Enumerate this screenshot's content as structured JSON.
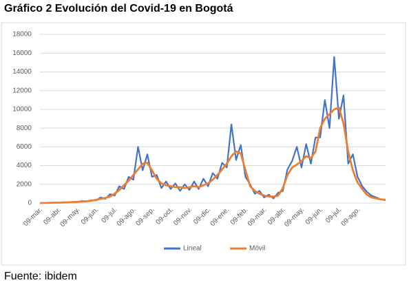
{
  "title": "Gráfico 2 Evolución del Covid-19 en Bogotá",
  "source": "Fuente: ibidem",
  "chart_data": {
    "type": "line",
    "categories": [
      "09-mar.",
      null,
      null,
      null,
      "09-abr.",
      null,
      null,
      null,
      "09-may.",
      null,
      null,
      null,
      "09-jun.",
      null,
      null,
      null,
      "09-jul.",
      null,
      null,
      null,
      "09-ago.",
      null,
      null,
      null,
      "09-sep.",
      null,
      null,
      null,
      "09-oct.",
      null,
      null,
      null,
      "09-nov.",
      null,
      null,
      null,
      "09-dic.",
      null,
      null,
      null,
      "09-ene.",
      null,
      null,
      null,
      "09-feb.",
      null,
      null,
      null,
      "09-mar.",
      null,
      null,
      null,
      "09-abr.",
      null,
      null,
      null,
      "09-may.",
      null,
      null,
      null,
      "09-jun.",
      null,
      null,
      null,
      "09-jul.",
      null,
      null,
      null,
      "09-ago.",
      null,
      null,
      null,
      null,
      null,
      null
    ],
    "series": [
      {
        "name": "Lineal",
        "color": "#4472c4",
        "values": [
          0,
          15,
          30,
          50,
          40,
          90,
          60,
          130,
          100,
          220,
          180,
          300,
          280,
          600,
          450,
          950,
          800,
          1800,
          1500,
          2800,
          2500,
          6000,
          3500,
          5200,
          2800,
          3000,
          1600,
          2300,
          1500,
          2100,
          1300,
          2000,
          1400,
          2300,
          1500,
          2600,
          1800,
          3200,
          2600,
          4300,
          3800,
          8400,
          4600,
          6200,
          2800,
          2000,
          1000,
          1300,
          600,
          900,
          500,
          1100,
          1300,
          3600,
          4500,
          6000,
          3800,
          6300,
          4200,
          7000,
          7000,
          11000,
          8000,
          15600,
          9000,
          11500,
          4200,
          5200,
          2800,
          1800,
          1200,
          800,
          600,
          400,
          300
        ]
      },
      {
        "name": "Móvil",
        "color": "#ed7d31",
        "values": [
          0,
          10,
          20,
          40,
          50,
          60,
          80,
          100,
          130,
          160,
          200,
          250,
          350,
          450,
          550,
          700,
          1000,
          1400,
          1900,
          2400,
          3000,
          3600,
          4200,
          4300,
          3500,
          2600,
          2100,
          1900,
          1800,
          1700,
          1700,
          1600,
          1700,
          1800,
          1700,
          1900,
          2100,
          2500,
          3000,
          3600,
          4200,
          5000,
          5500,
          5300,
          3500,
          1800,
          1300,
          1000,
          800,
          700,
          700,
          800,
          1600,
          3000,
          3800,
          4100,
          4500,
          5000,
          4800,
          5500,
          8000,
          9000,
          9500,
          10000,
          10200,
          8500,
          5500,
          3500,
          2200,
          1500,
          900,
          600,
          500,
          400,
          350
        ]
      }
    ],
    "ylim": [
      0,
      18000
    ],
    "yticks": [
      0,
      2000,
      4000,
      6000,
      8000,
      10000,
      12000,
      14000,
      16000,
      18000
    ],
    "grid": true,
    "legend": "bottom"
  }
}
